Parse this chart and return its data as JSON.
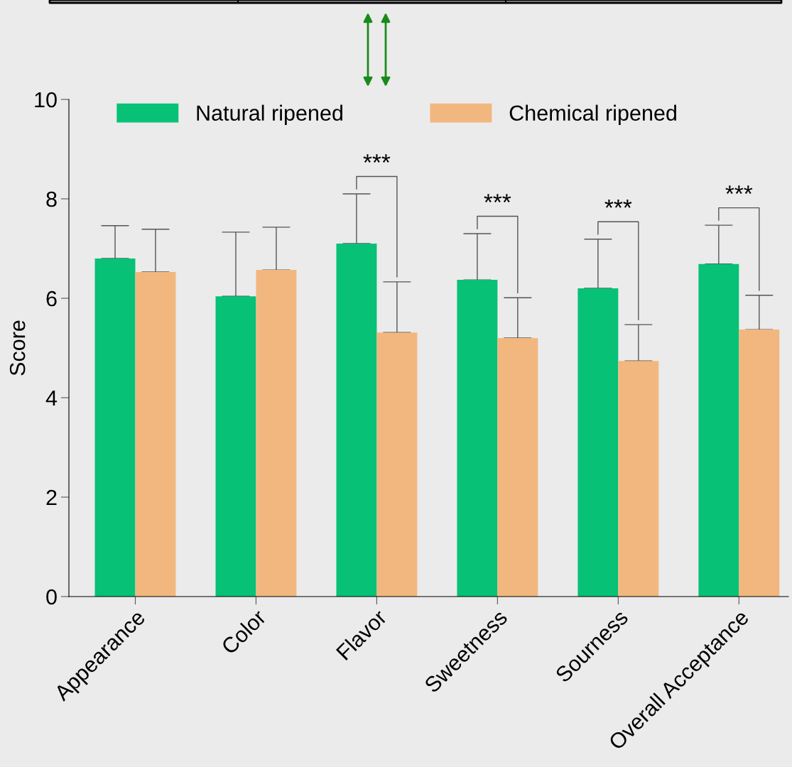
{
  "chart_data": {
    "type": "bar",
    "ylabel": "Score",
    "categories": [
      "Appearance",
      "Color",
      "Flavor",
      "Sweetness",
      "Sourness",
      "Overall Acceptance"
    ],
    "series": [
      {
        "name": "Natural ripened",
        "color": "#07c177",
        "values": [
          6.8,
          6.04,
          7.1,
          6.37,
          6.2,
          6.69
        ],
        "errors": [
          0.66,
          1.29,
          1.0,
          0.93,
          0.99,
          0.78
        ]
      },
      {
        "name": "Chemical ripened",
        "color": "#f2b77f",
        "values": [
          6.53,
          6.57,
          5.31,
          5.2,
          4.74,
          5.37
        ],
        "errors": [
          0.86,
          0.86,
          1.02,
          0.81,
          0.73,
          0.69
        ]
      }
    ],
    "ylim": [
      0,
      10
    ],
    "yticks": [
      0,
      2,
      4,
      6,
      8,
      10
    ],
    "grid": false,
    "legend": "top left",
    "annotations": [
      "***",
      "***",
      "***",
      "***"
    ]
  }
}
